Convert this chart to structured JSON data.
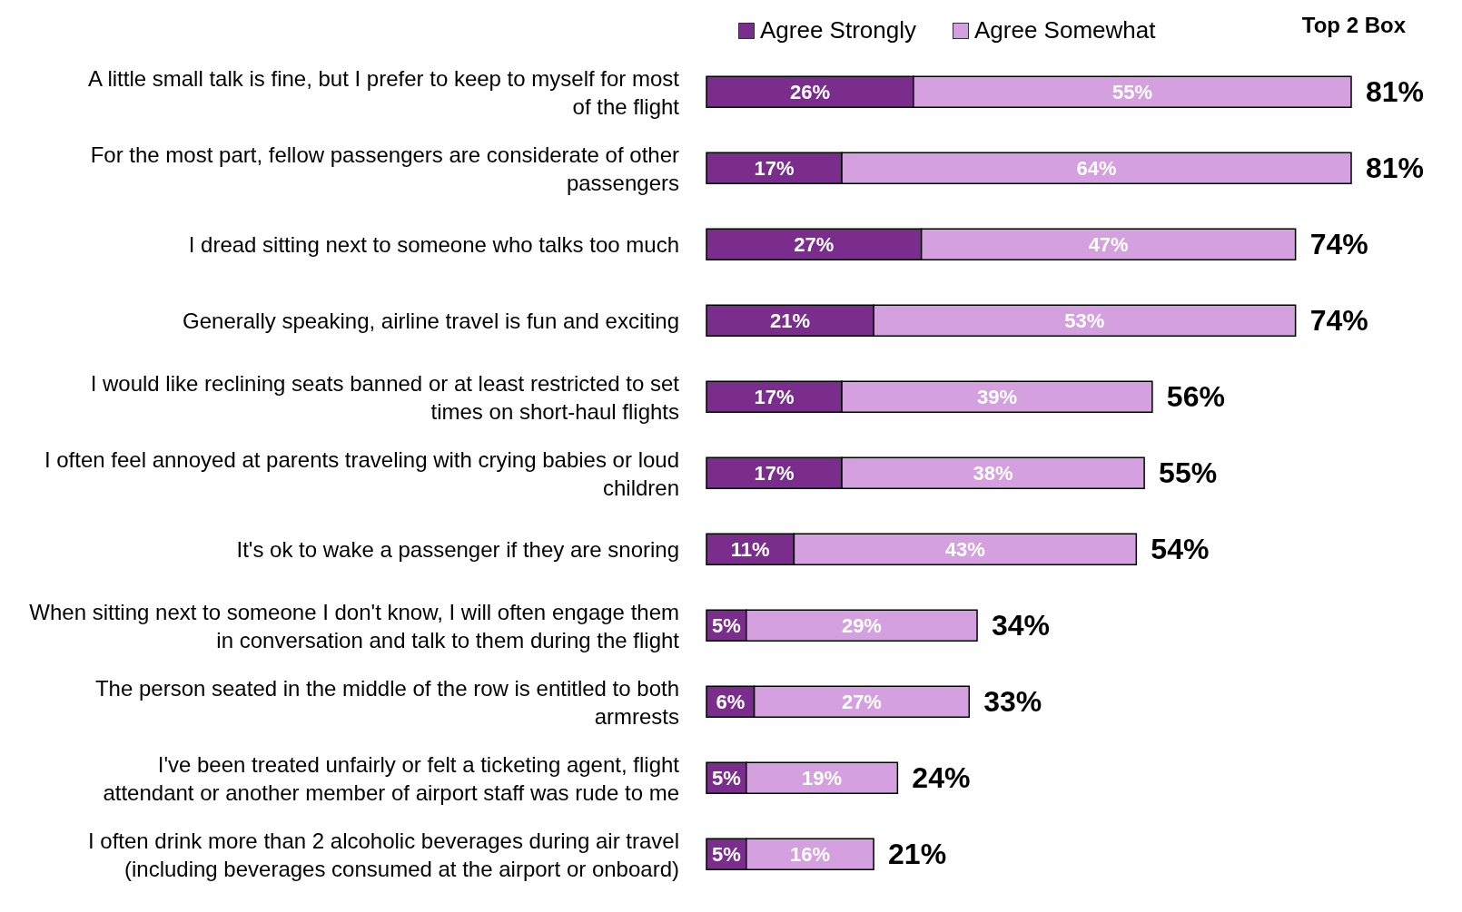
{
  "chart_data": {
    "type": "bar",
    "orientation": "horizontal",
    "stacked": true,
    "legend": "top",
    "data_labels": true,
    "categories": [
      "A little small talk is fine, but I prefer to keep to myself for most of the flight",
      "For the most part, fellow passengers are considerate of other passengers",
      "I dread sitting next to someone who talks too much",
      "Generally speaking, airline travel is fun and exciting",
      "I would like reclining seats banned or at least restricted to set times on short-haul flights",
      "I often feel annoyed at parents traveling with crying babies or loud children",
      "It's ok to wake a passenger if they are snoring",
      "When sitting next to someone I don't know, I will often engage them in conversation and talk to them during the flight",
      "The person seated in the middle of the row is entitled to both armrests",
      "I've been treated unfairly or felt a ticketing agent, flight attendant or another member of airport staff was rude to me",
      "I often drink more than 2 alcoholic beverages during air travel (including beverages consumed at the airport or onboard)"
    ],
    "series": [
      {
        "name": "Agree Strongly",
        "color": "#7b2d8e",
        "values": [
          26,
          17,
          27,
          21,
          17,
          17,
          11,
          5,
          6,
          5,
          5
        ],
        "value_labels": [
          "26%",
          "17%",
          "27%",
          "21%",
          "17%",
          "17%",
          "11%",
          "5%",
          "6%",
          "5%",
          "5%"
        ]
      },
      {
        "name": "Agree Somewhat",
        "color": "#d4a0df",
        "values": [
          55,
          64,
          47,
          53,
          39,
          38,
          43,
          29,
          27,
          19,
          16
        ],
        "value_labels": [
          "55%",
          "64%",
          "47%",
          "53%",
          "39%",
          "38%",
          "43%",
          "29%",
          "27%",
          "19%",
          "16%"
        ]
      }
    ],
    "totals": [
      "81%",
      "81%",
      "74%",
      "74%",
      "56%",
      "55%",
      "54%",
      "34%",
      "33%",
      "24%",
      "21%"
    ],
    "annotations": [
      "Top 2 Box"
    ]
  }
}
